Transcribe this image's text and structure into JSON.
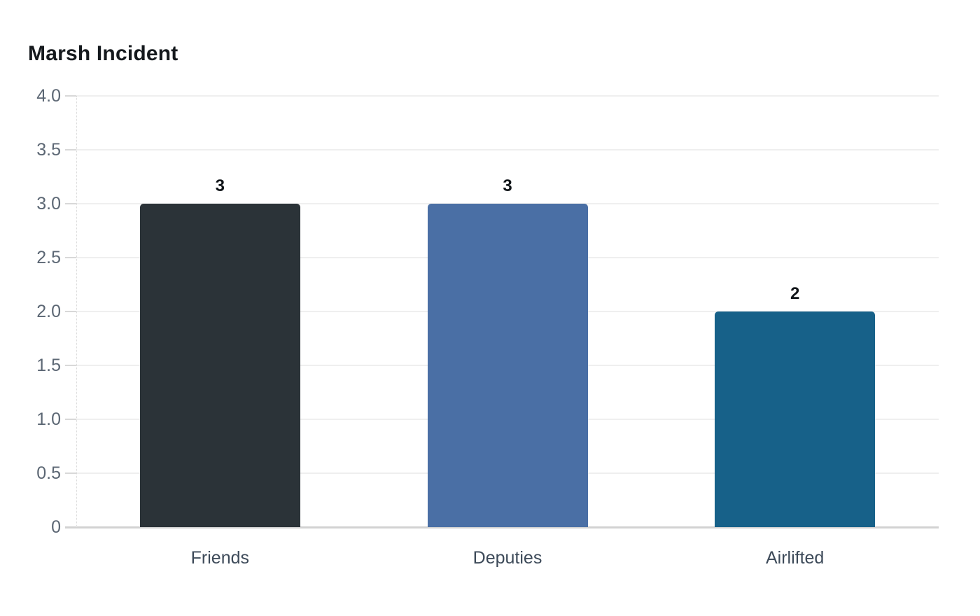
{
  "page": {
    "background_color": "#ffffff"
  },
  "chart_data": {
    "type": "bar",
    "title": "Marsh Incident",
    "categories": [
      "Friends",
      "Deputies",
      "Airlifted"
    ],
    "values": [
      3,
      3,
      2
    ],
    "value_labels": [
      "3",
      "3",
      "2"
    ],
    "bar_colors": [
      "#2b3338",
      "#4a6fa5",
      "#176189"
    ],
    "xlabel": "",
    "ylabel": "",
    "ylim": [
      0,
      4
    ],
    "ytick_values": [
      0,
      0.5,
      1,
      1.5,
      2,
      2.5,
      3,
      3.5,
      4
    ],
    "ytick_labels": [
      "0",
      "0.5",
      "1.0",
      "1.5",
      "2.0",
      "2.5",
      "3.0",
      "3.5",
      "4.0"
    ],
    "grid": "horizontal",
    "legend": "none",
    "colors": {
      "title_text": "#15191d",
      "ytick_text": "#5c6774",
      "xtick_text": "#3d4a59",
      "value_label_text": "#101418",
      "gridline": "#efefef",
      "tick_mark": "#d8d8d8",
      "axis_dotted_line": "#d9d9d9",
      "baseline": "#d2d2d2"
    }
  }
}
